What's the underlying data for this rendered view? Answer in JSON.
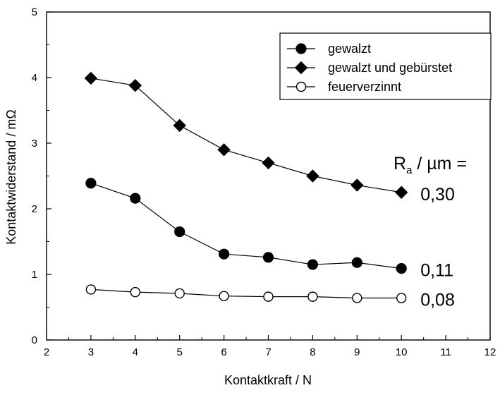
{
  "chart_data": {
    "type": "line",
    "xlabel": "Kontaktkraft / N",
    "ylabel": "Kontaktwiderstand / mΩ",
    "xlim": [
      2,
      12
    ],
    "ylim": [
      0,
      5
    ],
    "xticks": [
      2,
      3,
      4,
      5,
      6,
      7,
      8,
      9,
      10,
      11,
      12
    ],
    "yticks": [
      0,
      1,
      2,
      3,
      4,
      5
    ],
    "grid": false,
    "legend_position": "top-right",
    "x": [
      3,
      4,
      5,
      6,
      7,
      8,
      9,
      10
    ],
    "series": [
      {
        "name": "gewalzt",
        "marker": "filled-circle",
        "values": [
          2.39,
          2.16,
          1.65,
          1.31,
          1.26,
          1.15,
          1.18,
          1.09
        ]
      },
      {
        "name": "gewalzt und gebürstet",
        "marker": "filled-diamond",
        "values": [
          3.99,
          3.88,
          3.27,
          2.9,
          2.7,
          2.5,
          2.36,
          2.25
        ]
      },
      {
        "name": "feuerverzinnt",
        "marker": "open-circle",
        "values": [
          0.77,
          0.73,
          0.71,
          0.67,
          0.66,
          0.66,
          0.64,
          0.64
        ]
      }
    ],
    "annotations": {
      "heading_main": "R",
      "heading_sub": "a",
      "heading_rest": " / µm =",
      "values": [
        {
          "series": "gewalzt und gebürstet",
          "text": "0,30"
        },
        {
          "series": "gewalzt",
          "text": "0,11"
        },
        {
          "series": "feuerverzinnt",
          "text": "0,08"
        }
      ]
    },
    "colors": {
      "line": "#000000",
      "marker_fill": "#000000",
      "open_marker_fill": "#ffffff"
    }
  }
}
